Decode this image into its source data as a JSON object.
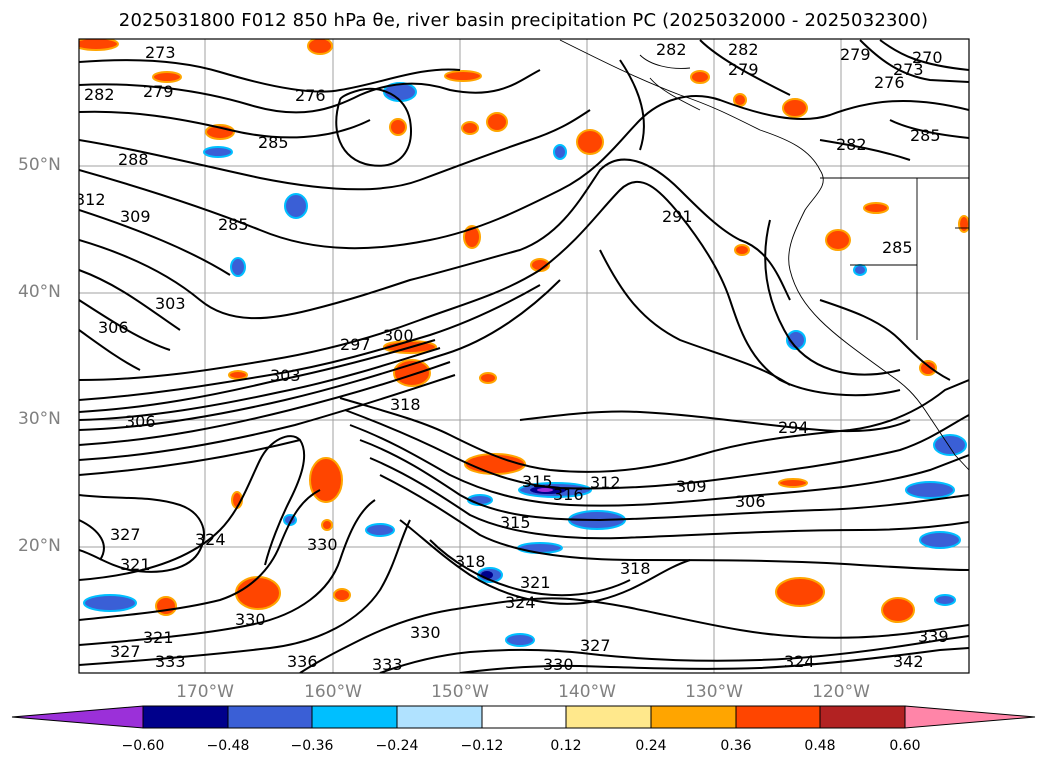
{
  "title": "2025031800 F012 850 hPa θe, river basin precipitation PC (2025032000 - 2025032300)",
  "map": {
    "lat_labels": [
      "50°N",
      "40°N",
      "30°N",
      "20°N"
    ],
    "lon_labels": [
      "170°W",
      "160°W",
      "150°W",
      "140°W",
      "130°W",
      "120°W"
    ],
    "contour_labels": [
      "273",
      "282",
      "279",
      "276",
      "285",
      "288",
      "312",
      "309",
      "285",
      "303",
      "306",
      "297",
      "300",
      "303",
      "318",
      "306",
      "291",
      "294",
      "312",
      "315",
      "309",
      "306",
      "316",
      "315",
      "327",
      "324",
      "321",
      "330",
      "318",
      "321",
      "324",
      "327",
      "330",
      "333",
      "336",
      "321",
      "330",
      "327",
      "330",
      "333",
      "279",
      "273",
      "270",
      "282",
      "282",
      "279",
      "276",
      "285",
      "282",
      "285",
      "318",
      "324",
      "339",
      "342"
    ]
  },
  "colorbar": {
    "tick_labels": [
      "−0.60",
      "−0.48",
      "−0.36",
      "−0.24",
      "−0.12",
      "0.12",
      "0.24",
      "0.36",
      "0.48",
      "0.60"
    ],
    "colors": [
      "#9b30d9",
      "#00008b",
      "#3a5fd6",
      "#00bfff",
      "#b0e2ff",
      "#ffffff",
      "#ffe88c",
      "#ffa500",
      "#ff4500",
      "#b22222",
      "#ff85a8"
    ]
  }
}
